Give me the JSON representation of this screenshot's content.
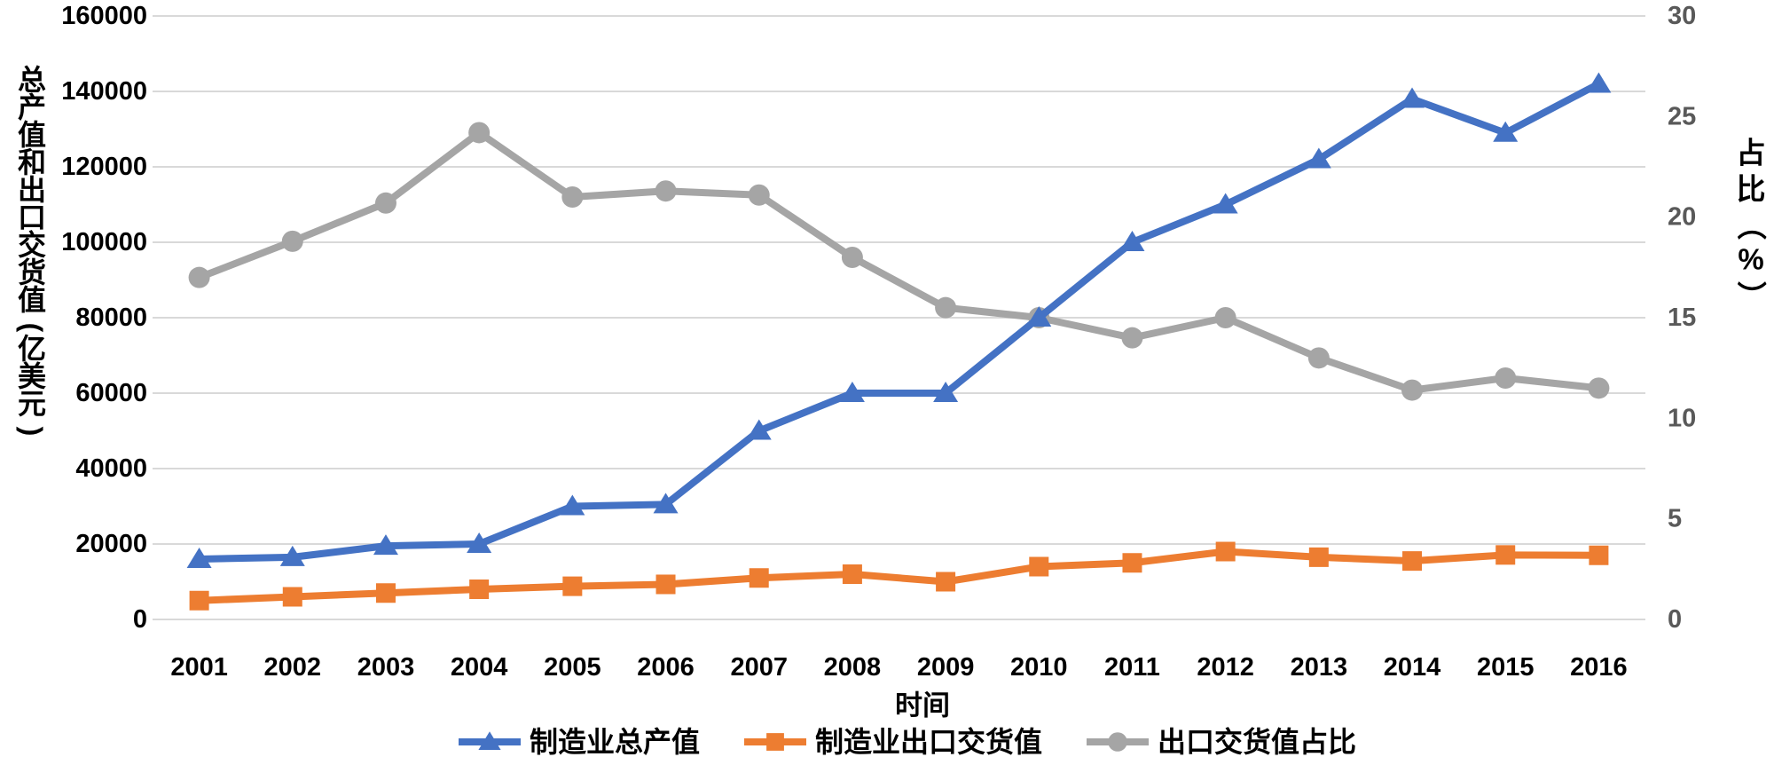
{
  "chart_data": {
    "type": "line",
    "title": "",
    "xlabel": "时间",
    "ylabel_left": "总产值和出口交货值(亿美元)",
    "ylabel_right": "占比（%）",
    "categories": [
      "2001",
      "2002",
      "2003",
      "2004",
      "2005",
      "2006",
      "2007",
      "2008",
      "2009",
      "2010",
      "2011",
      "2012",
      "2013",
      "2014",
      "2015",
      "2016"
    ],
    "axis_left": {
      "min": 0,
      "max": 160000,
      "step": 20000
    },
    "axis_right": {
      "min": 0,
      "max": 30,
      "step": 5
    },
    "grid": "horizontal-only",
    "legend_position": "bottom-center",
    "series": [
      {
        "id": "gross-output",
        "name": "制造业总产值",
        "axis": "left",
        "color": "#4472C4",
        "marker": "triangle",
        "values": [
          16000,
          16500,
          19500,
          20000,
          30000,
          30500,
          50000,
          60000,
          60000,
          80000,
          100000,
          110000,
          122000,
          138000,
          129000,
          142000
        ]
      },
      {
        "id": "export-delivery",
        "name": "制造业出口交货值",
        "axis": "left",
        "color": "#ED7D31",
        "marker": "square",
        "values": [
          5000,
          6000,
          7000,
          8000,
          8800,
          9300,
          11000,
          12000,
          10000,
          14000,
          15000,
          18000,
          16500,
          15500,
          17100,
          17000
        ]
      },
      {
        "id": "export-share",
        "name": "出口交货值占比",
        "axis": "right",
        "color": "#A5A5A5",
        "marker": "circle",
        "values": [
          17.0,
          18.8,
          20.7,
          24.2,
          21.0,
          21.3,
          21.1,
          18.0,
          15.5,
          15.0,
          14.0,
          15.0,
          13.0,
          11.4,
          12.0,
          11.5
        ]
      }
    ],
    "colors": {
      "gridline": "#D9D9D9",
      "tick_left": "#000000",
      "tick_right": "#595959",
      "axis_title": "#000000",
      "legend_text": "#000000",
      "background": "#FFFFFF"
    }
  }
}
